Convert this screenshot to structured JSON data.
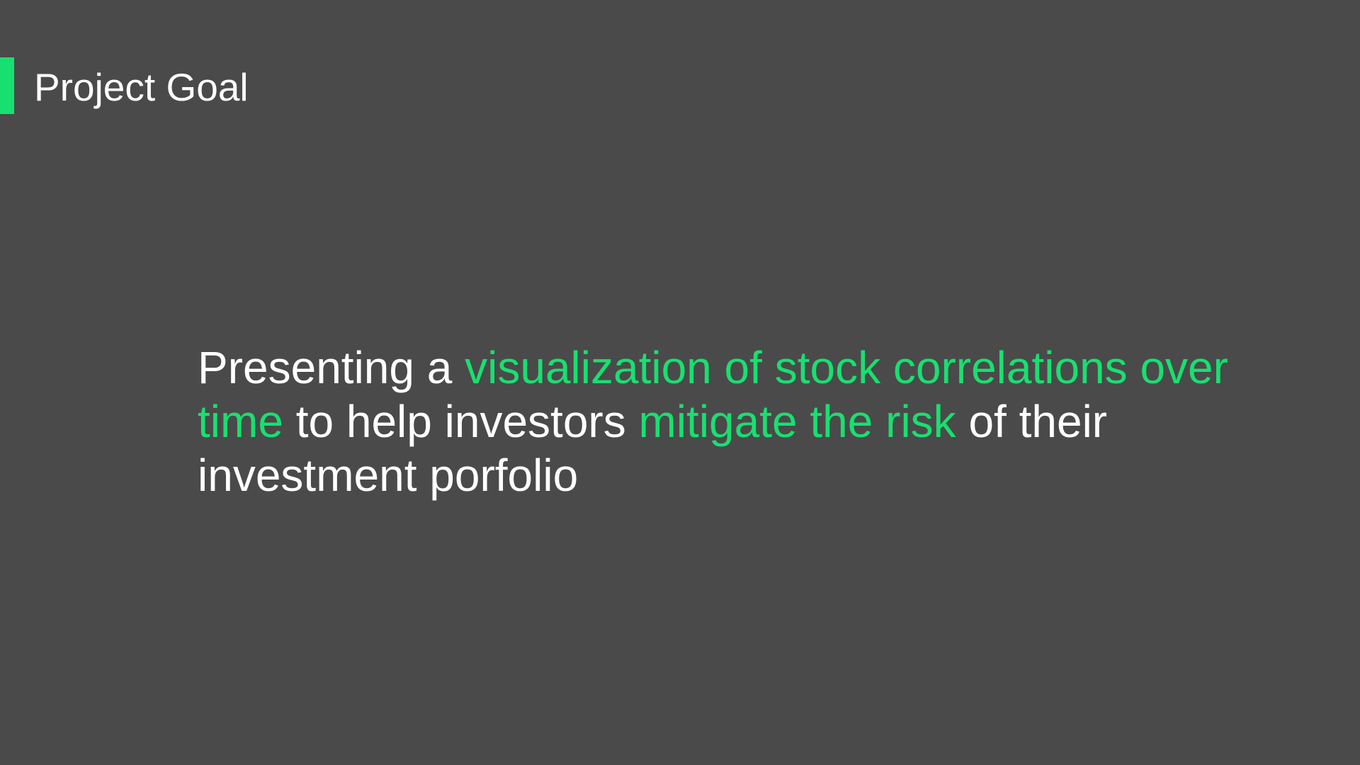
{
  "slide": {
    "title": "Project Goal",
    "statement": {
      "part1": "Presenting a ",
      "highlight1": "visualization of stock correlations over time",
      "part2": " to help investors ",
      "highlight2": "mitigate the risk",
      "part3": " of their investment porfolio"
    }
  },
  "colors": {
    "background": "#4a4a4a",
    "accent": "#18e070",
    "text": "#ffffff"
  }
}
